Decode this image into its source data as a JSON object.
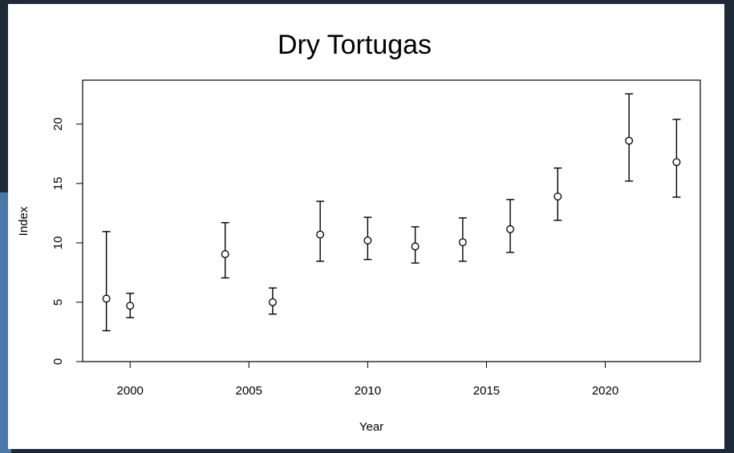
{
  "chart_data": {
    "type": "errorbar",
    "title": "Dry Tortugas",
    "x_label": "Year",
    "y_label": "Index",
    "x": [
      1999,
      2000,
      2004,
      2006,
      2008,
      2010,
      2012,
      2014,
      2016,
      2018,
      2021,
      2023
    ],
    "values": [
      5.3,
      4.7,
      9.05,
      5.0,
      10.7,
      10.2,
      9.7,
      10.05,
      11.15,
      13.9,
      18.6,
      16.8
    ],
    "lower": [
      2.6,
      3.7,
      7.05,
      4.0,
      8.45,
      8.6,
      8.3,
      8.45,
      9.2,
      11.9,
      15.2,
      13.85
    ],
    "upper": [
      10.95,
      5.75,
      11.7,
      6.2,
      13.5,
      12.15,
      11.35,
      12.1,
      13.65,
      16.3,
      22.55,
      20.4
    ],
    "color": "#000000",
    "xlim": [
      1998,
      2024
    ],
    "xticks": [
      2000,
      2005,
      2010,
      2015,
      2020
    ],
    "ylim": [
      0,
      23.7
    ],
    "yticks": [
      0,
      5,
      10,
      15,
      20
    ]
  }
}
